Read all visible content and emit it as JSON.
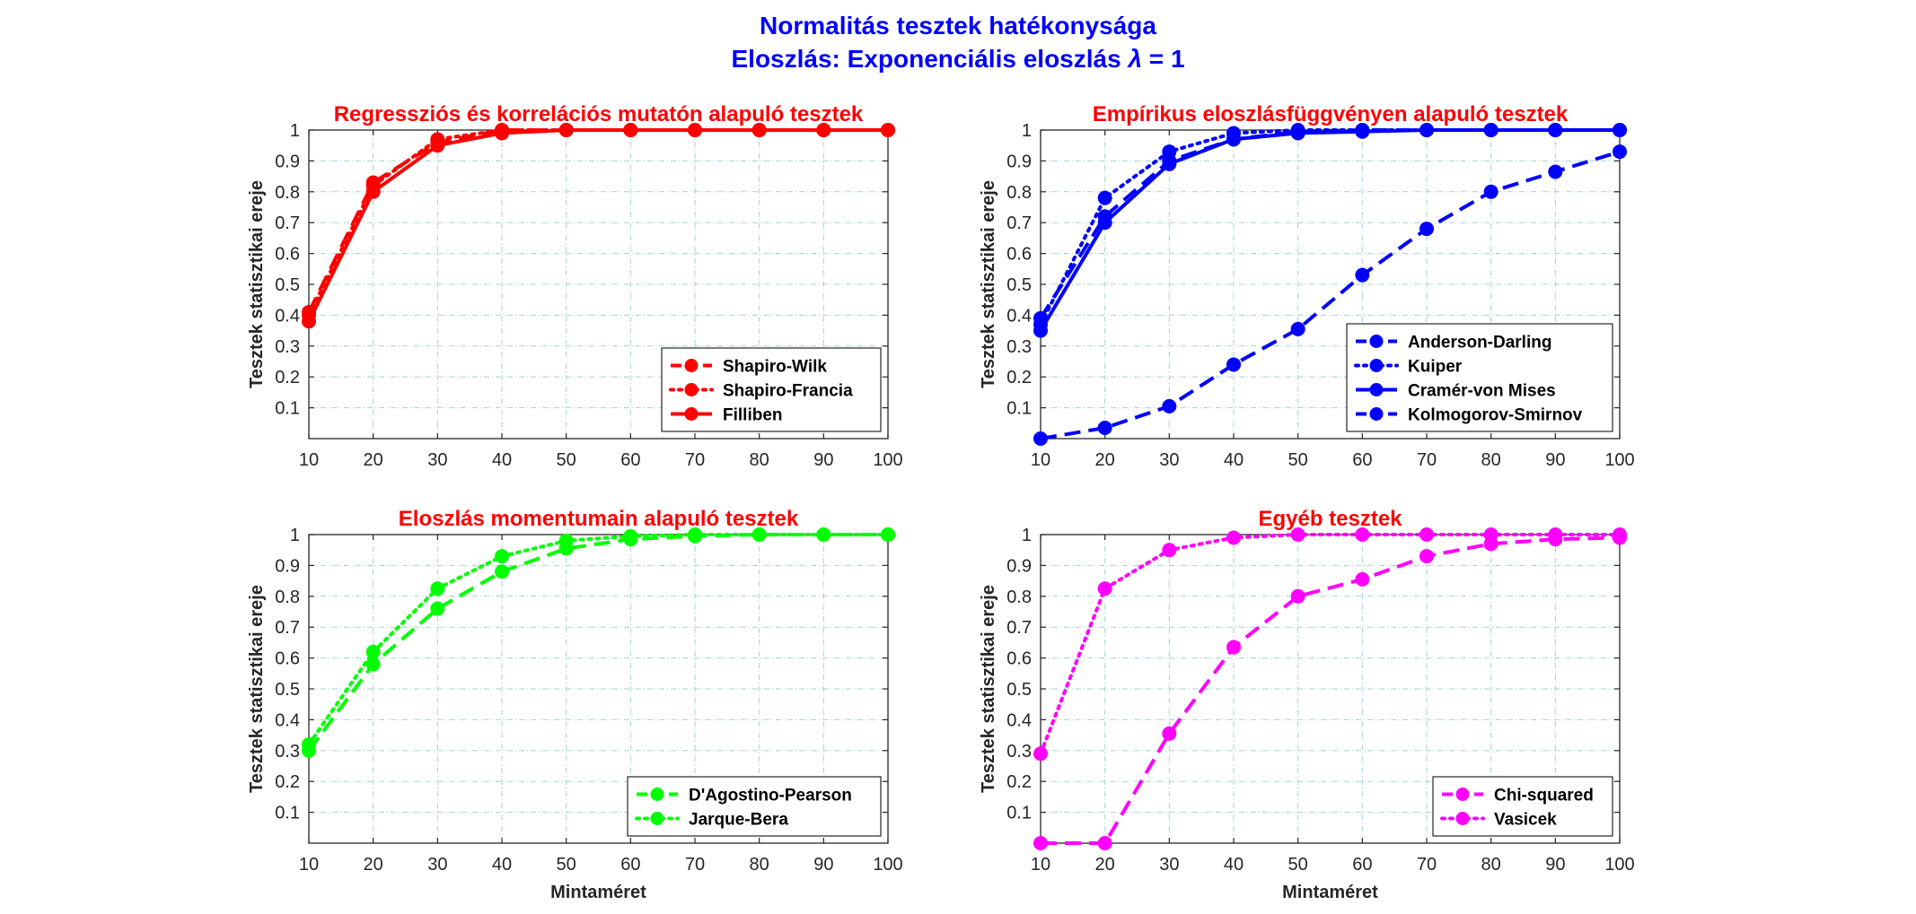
{
  "figure": {
    "title_line1": "Normalitás tesztek hatékonysága",
    "title_line2_prefix": "Eloszlás: Exponenciális eloszlás ",
    "title_line2_symbol": "λ",
    "title_line2_suffix": " = 1",
    "title_color": "#0000ff"
  },
  "chart_data": [
    {
      "type": "line",
      "title": "Regressziós és korrelációs mutatón alapuló tesztek",
      "title_color": "#ff0000",
      "color": "#ff0000",
      "xlabel": "",
      "ylabel": "Tesztek statisztikai ereje",
      "x": [
        10,
        20,
        30,
        40,
        50,
        60,
        70,
        80,
        90,
        100
      ],
      "xlim": [
        10,
        100
      ],
      "ylim": [
        0,
        1
      ],
      "xticks": [
        "10",
        "20",
        "30",
        "40",
        "50",
        "60",
        "70",
        "80",
        "90",
        "100"
      ],
      "yticks": [
        "0.1",
        "0.2",
        "0.3",
        "0.4",
        "0.5",
        "0.6",
        "0.7",
        "0.8",
        "0.9",
        "1"
      ],
      "grid": true,
      "legend_position": "bottom-right",
      "series": [
        {
          "name": "Shapiro-Wilk",
          "style": "dashed",
          "values": [
            0.41,
            0.83,
            0.96,
            1.0,
            1.0,
            1.0,
            1.0,
            1.0,
            1.0,
            1.0
          ]
        },
        {
          "name": "Shapiro-Francia",
          "style": "dotted",
          "values": [
            0.4,
            0.82,
            0.97,
            1.0,
            1.0,
            1.0,
            1.0,
            1.0,
            1.0,
            1.0
          ]
        },
        {
          "name": "Filliben",
          "style": "solid",
          "values": [
            0.38,
            0.8,
            0.95,
            0.99,
            1.0,
            1.0,
            1.0,
            1.0,
            1.0,
            1.0
          ]
        }
      ]
    },
    {
      "type": "line",
      "title": "Empírikus eloszlásfüggvényen alapuló tesztek",
      "title_color": "#ff0000",
      "color": "#0000ff",
      "xlabel": "",
      "ylabel": "Tesztek statisztikai ereje",
      "x": [
        10,
        20,
        30,
        40,
        50,
        60,
        70,
        80,
        90,
        100
      ],
      "xlim": [
        10,
        100
      ],
      "ylim": [
        0,
        1
      ],
      "xticks": [
        "10",
        "20",
        "30",
        "40",
        "50",
        "60",
        "70",
        "80",
        "90",
        "100"
      ],
      "yticks": [
        "0.1",
        "0.2",
        "0.3",
        "0.4",
        "0.5",
        "0.6",
        "0.7",
        "0.8",
        "0.9",
        "1"
      ],
      "grid": true,
      "legend_position": "bottom-right",
      "series": [
        {
          "name": "Anderson-Darling",
          "style": "dashed",
          "values": [
            0.39,
            0.72,
            0.9,
            0.97,
            0.995,
            1.0,
            1.0,
            1.0,
            1.0,
            1.0
          ]
        },
        {
          "name": "Kuiper",
          "style": "dotted",
          "values": [
            0.37,
            0.78,
            0.93,
            0.99,
            1.0,
            1.0,
            1.0,
            1.0,
            1.0,
            1.0
          ]
        },
        {
          "name": "Cramér-von Mises",
          "style": "solid",
          "values": [
            0.35,
            0.7,
            0.89,
            0.97,
            0.99,
            0.995,
            1.0,
            1.0,
            1.0,
            1.0
          ]
        },
        {
          "name": "Kolmogorov-Smirnov",
          "style": "dashed",
          "values": [
            0.0,
            0.035,
            0.105,
            0.24,
            0.355,
            0.53,
            0.68,
            0.8,
            0.865,
            0.93
          ]
        }
      ]
    },
    {
      "type": "line",
      "title": "Eloszlás momentumain alapuló tesztek",
      "title_color": "#ff0000",
      "color": "#00ff00",
      "xlabel": "Mintaméret",
      "ylabel": "Tesztek statisztikai ereje",
      "x": [
        10,
        20,
        30,
        40,
        50,
        60,
        70,
        80,
        90,
        100
      ],
      "xlim": [
        10,
        100
      ],
      "ylim": [
        0,
        1
      ],
      "xticks": [
        "10",
        "20",
        "30",
        "40",
        "50",
        "60",
        "70",
        "80",
        "90",
        "100"
      ],
      "yticks": [
        "0.1",
        "0.2",
        "0.3",
        "0.4",
        "0.5",
        "0.6",
        "0.7",
        "0.8",
        "0.9",
        "1"
      ],
      "grid": true,
      "legend_position": "bottom-right",
      "series": [
        {
          "name": "D'Agostino-Pearson",
          "style": "dashed",
          "values": [
            0.3,
            0.58,
            0.76,
            0.88,
            0.955,
            0.985,
            0.995,
            1.0,
            1.0,
            1.0
          ]
        },
        {
          "name": "Jarque-Bera",
          "style": "dotted",
          "values": [
            0.32,
            0.62,
            0.825,
            0.93,
            0.98,
            0.995,
            1.0,
            1.0,
            1.0,
            1.0
          ]
        }
      ]
    },
    {
      "type": "line",
      "title": "Egyéb tesztek",
      "title_color": "#ff0000",
      "color": "#ff00ff",
      "xlabel": "Mintaméret",
      "ylabel": "Tesztek statisztikai ereje",
      "x": [
        10,
        20,
        30,
        40,
        50,
        60,
        70,
        80,
        90,
        100
      ],
      "xlim": [
        10,
        100
      ],
      "ylim": [
        0,
        1
      ],
      "xticks": [
        "10",
        "20",
        "30",
        "40",
        "50",
        "60",
        "70",
        "80",
        "90",
        "100"
      ],
      "yticks": [
        "0.1",
        "0.2",
        "0.3",
        "0.4",
        "0.5",
        "0.6",
        "0.7",
        "0.8",
        "0.9",
        "1"
      ],
      "grid": true,
      "legend_position": "bottom-right",
      "series": [
        {
          "name": "Chi-squared",
          "style": "dashed",
          "values": [
            0.0,
            0.0,
            0.355,
            0.635,
            0.8,
            0.855,
            0.93,
            0.97,
            0.985,
            0.99
          ]
        },
        {
          "name": "Vasicek",
          "style": "dotted",
          "values": [
            0.29,
            0.825,
            0.95,
            0.99,
            1.0,
            1.0,
            1.0,
            1.0,
            1.0,
            1.0
          ]
        }
      ]
    }
  ]
}
